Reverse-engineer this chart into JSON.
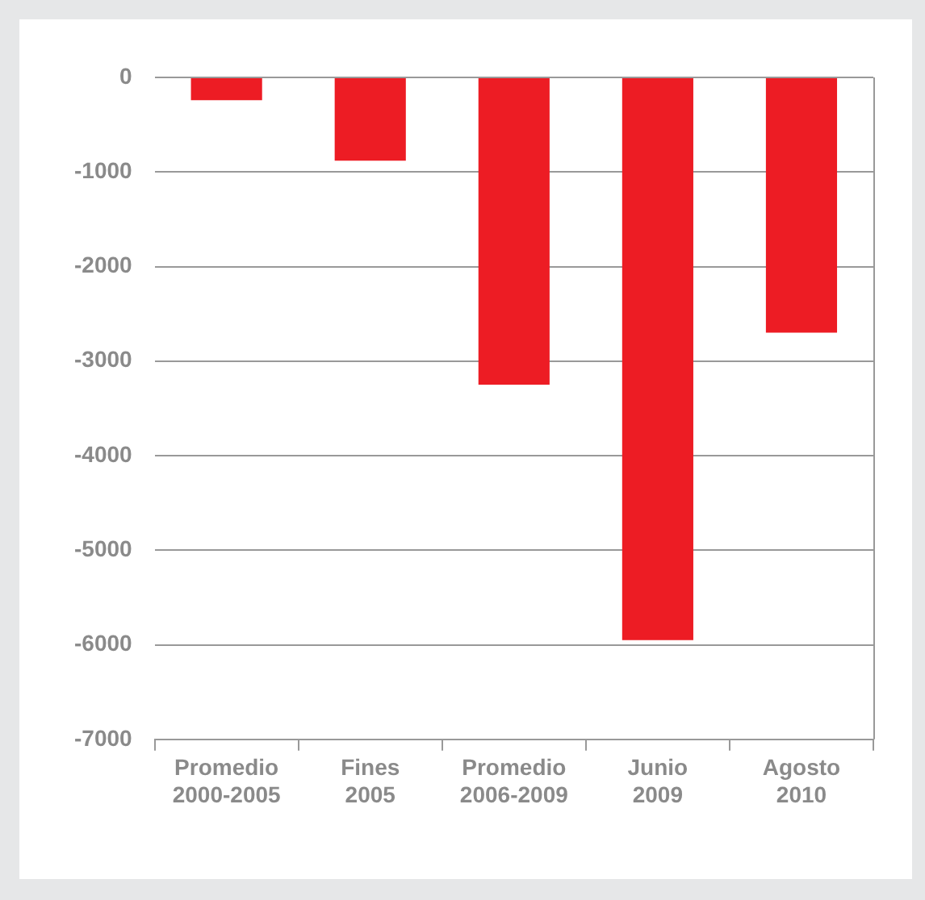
{
  "chart_data": {
    "type": "bar",
    "categories": [
      "Promedio 2000-2005",
      "Fines 2005",
      "Promedio 2006-2009",
      "Junio 2009",
      "Agosto 2010"
    ],
    "values": [
      -240,
      -880,
      -3250,
      -5950,
      -2700
    ],
    "color": "#ed1c24",
    "ylim": [
      -7000,
      0
    ],
    "yticks": [
      -7000,
      -6000,
      -5000,
      -4000,
      -3000,
      -2000,
      -1000,
      0
    ],
    "grid": "y"
  }
}
